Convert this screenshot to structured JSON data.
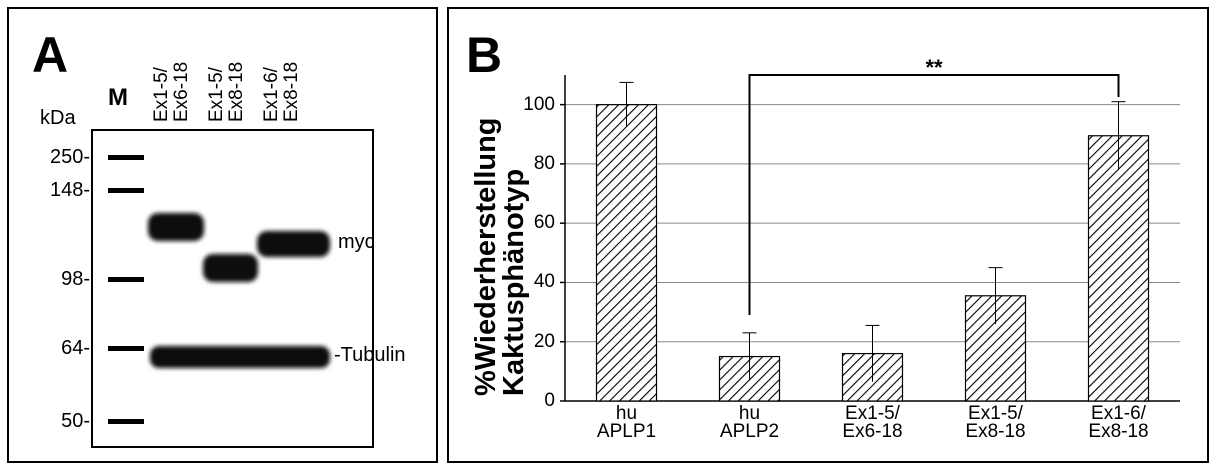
{
  "panel_a": {
    "letter": "A",
    "marker_lane": "M",
    "unit": "kDa",
    "lanes": [
      "Ex1-5/\nEx6-18",
      "Ex1-5/\nEx8-18",
      "Ex1-6/\nEx8-18"
    ],
    "markers": [
      "250-",
      "148-",
      "98-",
      "64-",
      "50-"
    ],
    "band_labels": [
      "myc",
      "-Tubulin"
    ]
  },
  "chart_data": {
    "type": "bar",
    "letter": "B",
    "y_label": "%Wiederherstellung\nKaktusphänotyp",
    "categories": [
      "hu\nAPLP1",
      "hu\nAPLP2",
      "Ex1-5/\nEx6-18",
      "Ex1-5/\nEx8-18",
      "Ex1-6/\nEx8-18"
    ],
    "values": [
      100,
      15,
      16,
      35.5,
      89.5
    ],
    "errors": [
      7.5,
      8,
      9.5,
      9.5,
      11.5
    ],
    "ylim": [
      0,
      110
    ],
    "yticks": [
      0,
      20,
      40,
      60,
      80,
      100
    ],
    "grid": true,
    "color": "#000000",
    "annotation": "**"
  }
}
